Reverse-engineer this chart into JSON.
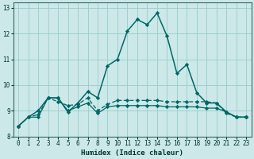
{
  "xlabel": "Humidex (Indice chaleur)",
  "background_color": "#cce8e8",
  "grid_color": "#99cccc",
  "line_color": "#006666",
  "xlim": [
    -0.5,
    23.5
  ],
  "ylim": [
    8,
    13.2
  ],
  "yticks": [
    8,
    9,
    10,
    11,
    12,
    13
  ],
  "xticks": [
    0,
    1,
    2,
    3,
    4,
    5,
    6,
    7,
    8,
    9,
    10,
    11,
    12,
    13,
    14,
    15,
    16,
    17,
    18,
    19,
    20,
    21,
    22,
    23
  ],
  "series1_y": [
    8.4,
    8.75,
    8.75,
    9.5,
    9.5,
    9.0,
    9.15,
    9.3,
    8.9,
    9.15,
    9.2,
    9.2,
    9.2,
    9.2,
    9.2,
    9.15,
    9.15,
    9.15,
    9.15,
    9.1,
    9.1,
    8.95,
    8.75,
    8.75
  ],
  "series2_y": [
    8.4,
    8.75,
    8.85,
    9.5,
    9.35,
    9.2,
    9.25,
    9.5,
    9.0,
    9.25,
    9.4,
    9.4,
    9.4,
    9.4,
    9.4,
    9.35,
    9.35,
    9.35,
    9.35,
    9.35,
    9.3,
    8.9,
    8.75,
    8.75
  ],
  "series3_y": [
    8.4,
    8.75,
    9.0,
    9.5,
    9.5,
    8.95,
    9.3,
    9.75,
    9.5,
    10.75,
    11.0,
    12.1,
    12.55,
    12.35,
    12.8,
    11.9,
    10.45,
    10.8,
    9.7,
    9.3,
    9.3,
    8.95,
    8.75,
    8.75
  ]
}
